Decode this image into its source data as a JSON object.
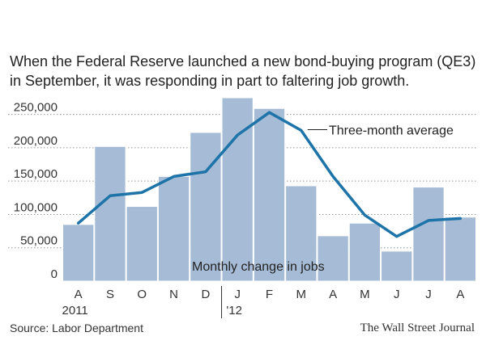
{
  "title": "When the Federal Reserve launched a new bond-buying program (QE3) in September, it was responding in part to faltering job growth.",
  "source": "Source: Labor Department",
  "publisher": "The Wall Street Journal",
  "chart_data": {
    "type": "bar",
    "categories": [
      "A",
      "S",
      "O",
      "N",
      "D",
      "J",
      "F",
      "M",
      "A",
      "M",
      "J",
      "J",
      "A"
    ],
    "year_labels": [
      {
        "category_index": 0,
        "label": "2011"
      },
      {
        "category_index": 5,
        "label": "'12"
      }
    ],
    "series": [
      {
        "name": "Monthly change in jobs",
        "type": "bar",
        "values": [
          85000,
          202000,
          112000,
          157000,
          223000,
          275000,
          259000,
          143000,
          68000,
          87000,
          45000,
          141000,
          96000
        ]
      },
      {
        "name": "Three-month average",
        "type": "line",
        "values": [
          87000,
          128000,
          133000,
          157000,
          164000,
          219000,
          253000,
          226000,
          157000,
          99000,
          67000,
          91000,
          94000
        ]
      }
    ],
    "yticks": [
      0,
      50000,
      100000,
      150000,
      200000,
      250000
    ],
    "ytick_labels": [
      "0",
      "50,000",
      "100,000",
      "150,000",
      "200,000",
      "250,000"
    ],
    "ylim": [
      0,
      275000
    ],
    "grid": true,
    "colors": {
      "bars": "#a6bcd6",
      "bar_edge": "#ffffff",
      "line": "#1e74a8",
      "grid": "#999999"
    }
  }
}
